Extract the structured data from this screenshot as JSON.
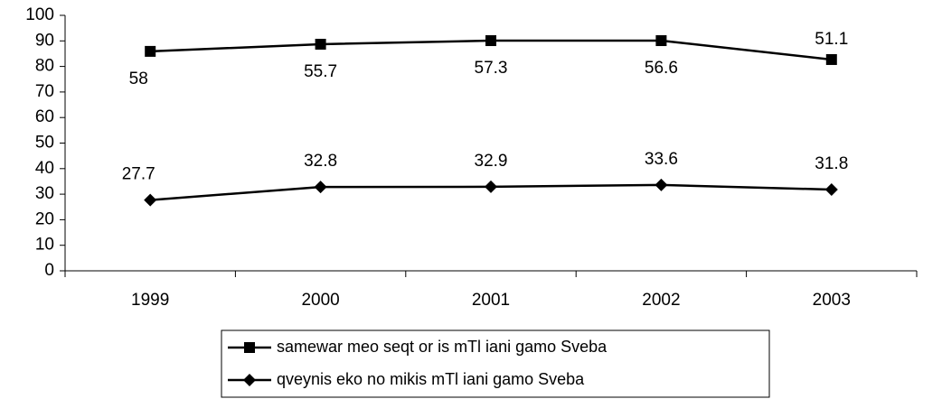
{
  "chart_data": {
    "type": "line",
    "categories": [
      "1999",
      "2000",
      "2001",
      "2002",
      "2003"
    ],
    "series": [
      {
        "name": "samewar meo seqt or is mTl iani gamo Sveba",
        "color": "#000000",
        "marker": "square",
        "values": [
          85.9,
          88.7,
          90.1,
          90.1,
          82.7
        ],
        "annotations": [
          "58",
          "55.7",
          "57.3",
          "56.6",
          "51.1"
        ]
      },
      {
        "name": "qveynis eko no mikis mTl iani gamo Sveba",
        "color": "#000000",
        "marker": "diamond",
        "values": [
          27.7,
          32.8,
          32.9,
          33.6,
          31.8
        ]
      }
    ],
    "ylim": [
      0,
      100
    ],
    "yticks": [
      0,
      10,
      20,
      30,
      40,
      50,
      60,
      70,
      80,
      90,
      100
    ],
    "grid": false,
    "legend": "bottom"
  }
}
